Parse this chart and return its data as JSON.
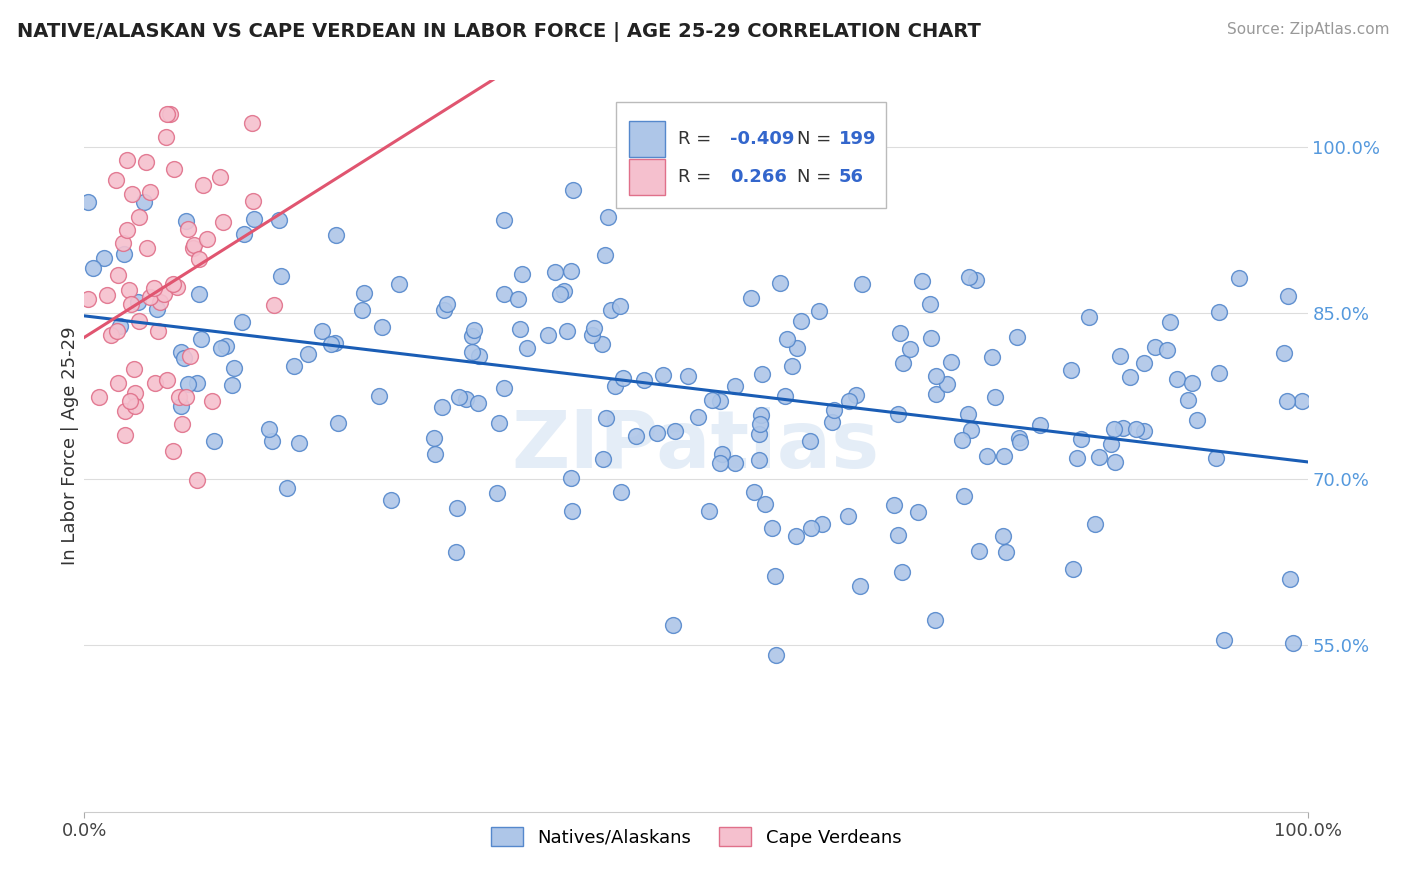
{
  "title": "NATIVE/ALASKAN VS CAPE VERDEAN IN LABOR FORCE | AGE 25-29 CORRELATION CHART",
  "source_text": "Source: ZipAtlas.com",
  "ylabel": "In Labor Force | Age 25-29",
  "blue_R": -0.409,
  "blue_N": 199,
  "pink_R": 0.266,
  "pink_N": 56,
  "blue_color": "#aec6e8",
  "blue_edge_color": "#5588cc",
  "pink_color": "#f5c0ce",
  "pink_edge_color": "#e0708a",
  "blue_line_color": "#1a5db5",
  "pink_line_color": "#e05570",
  "background_color": "#ffffff",
  "legend_label_blue": "Natives/Alaskans",
  "legend_label_pink": "Cape Verdeans",
  "xlim": [
    0.0,
    1.0
  ],
  "ylim": [
    0.4,
    1.06
  ],
  "right_yticks": [
    0.55,
    0.7,
    0.85,
    1.0
  ],
  "right_yticklabels": [
    "55.0%",
    "70.0%",
    "85.0%",
    "100.0%"
  ],
  "watermark": "ZIPatlas"
}
